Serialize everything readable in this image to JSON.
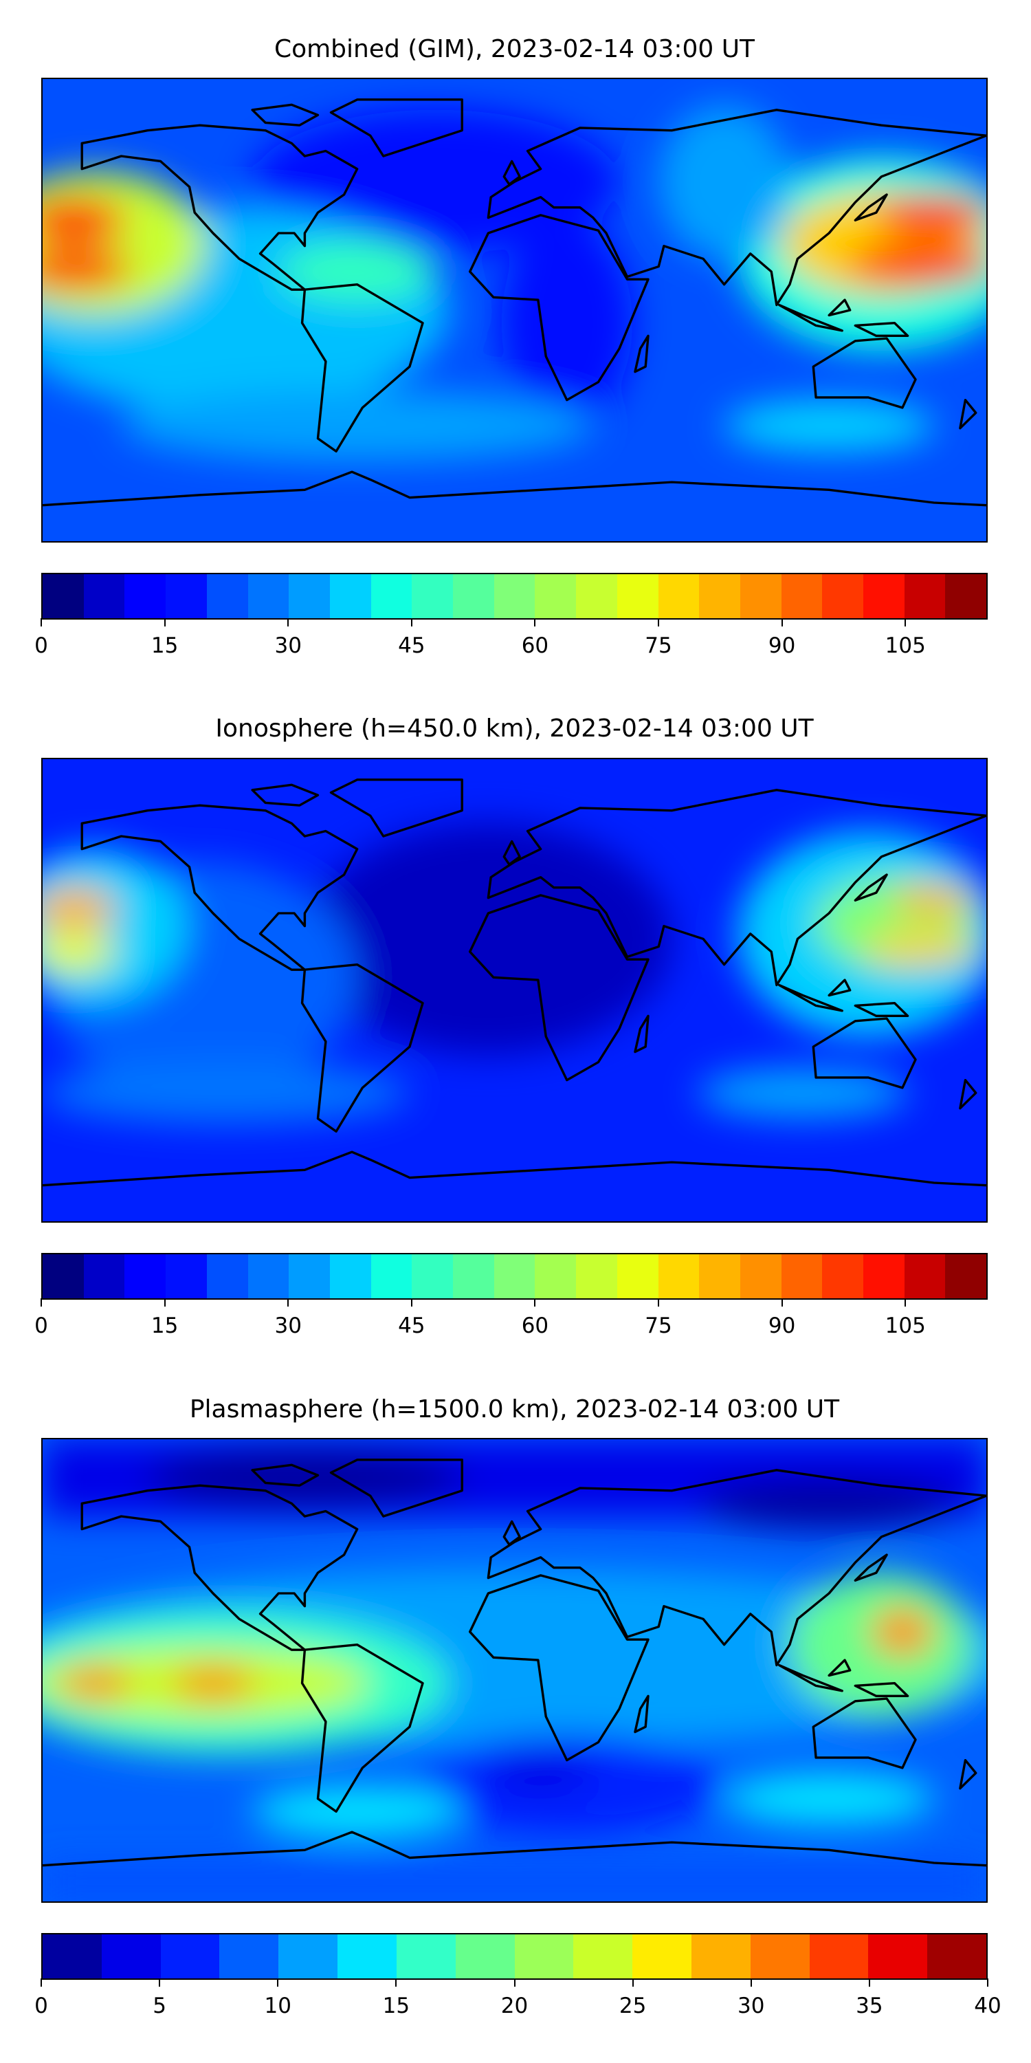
{
  "panels": [
    {
      "title": "Combined (GIM), 2023-02-14 03:00 UT",
      "colorbar_key": 0
    },
    {
      "title": "Ionosphere  (h=450.0 km), 2023-02-14 03:00 UT",
      "colorbar_key": 0
    },
    {
      "title": "Plasmasphere (h=1500.0 km), 2023-02-14 03:00 UT",
      "colorbar_key": 1
    }
  ],
  "chart_data": [
    {
      "type": "heatmap",
      "title": "Combined (GIM), 2023-02-14 03:00 UT",
      "projection": "equirectangular, lon -180..180, lat -90..90",
      "colorbar": {
        "range": [
          0,
          115
        ],
        "step": 5,
        "ticks": [
          0,
          15,
          30,
          45,
          60,
          75,
          90,
          105
        ]
      },
      "features": [
        "maxima (~105-115) over central Pacific near equator at ±15° lat",
        "maxima (~100-110) over Western Pacific / New Guinea",
        "minima (~5-15) over North Atlantic and Africa"
      ]
    },
    {
      "type": "heatmap",
      "title": "Ionosphere  (h=450.0 km), 2023-02-14 03:00 UT",
      "projection": "equirectangular, lon -180..180, lat -90..90",
      "colorbar": {
        "range": [
          0,
          115
        ],
        "step": 5,
        "ticks": [
          0,
          15,
          30,
          45,
          60,
          75,
          90,
          105
        ]
      },
      "features": [
        "maxima (~75-85) over central Pacific",
        "maxima (~75-85) over Western Pacific",
        "minima (~0-10) over Atlantic and Africa"
      ]
    },
    {
      "type": "heatmap",
      "title": "Plasmasphere (h=1500.0 km), 2023-02-14 03:00 UT",
      "projection": "equirectangular, lon -180..180, lat -90..90",
      "colorbar": {
        "range": [
          0,
          40
        ],
        "step": 2.5,
        "ticks": [
          0,
          5,
          10,
          15,
          20,
          25,
          30,
          35,
          40
        ]
      },
      "features": [
        "maxima (~30-32) over eastern Pacific at ~15°S",
        "maximum (~30) near Philippines",
        "minima (~2-5) at high northern latitudes and South Atlantic"
      ]
    }
  ],
  "colorbars": [
    {
      "min": 0,
      "max": 115,
      "ticks": [
        "0",
        "15",
        "30",
        "45",
        "60",
        "75",
        "90",
        "105"
      ],
      "tick_values": [
        0,
        15,
        30,
        45,
        60,
        75,
        90,
        105
      ],
      "colors": [
        "#000080",
        "#0000c8",
        "#0000ff",
        "#0010ff",
        "#0050ff",
        "#0074ff",
        "#009cff",
        "#00d0ff",
        "#10ffe0",
        "#33ffc0",
        "#55ff9c",
        "#80ff78",
        "#a4ff50",
        "#c8ff30",
        "#e8ff10",
        "#ffd800",
        "#ffb400",
        "#ff9000",
        "#ff6400",
        "#ff3800",
        "#ff1000",
        "#c80000",
        "#900000"
      ]
    },
    {
      "min": 0,
      "max": 40,
      "ticks": [
        "0",
        "5",
        "10",
        "15",
        "20",
        "25",
        "30",
        "35",
        "40"
      ],
      "tick_values": [
        0,
        5,
        10,
        15,
        20,
        25,
        30,
        35,
        40
      ],
      "colors": [
        "#0000a0",
        "#0000e8",
        "#0020ff",
        "#0060ff",
        "#00a0ff",
        "#00e4ff",
        "#33ffc8",
        "#66ff8c",
        "#9cff58",
        "#caff2a",
        "#ffec00",
        "#ffb000",
        "#ff7800",
        "#ff3c00",
        "#e80000",
        "#a00000"
      ]
    }
  ]
}
